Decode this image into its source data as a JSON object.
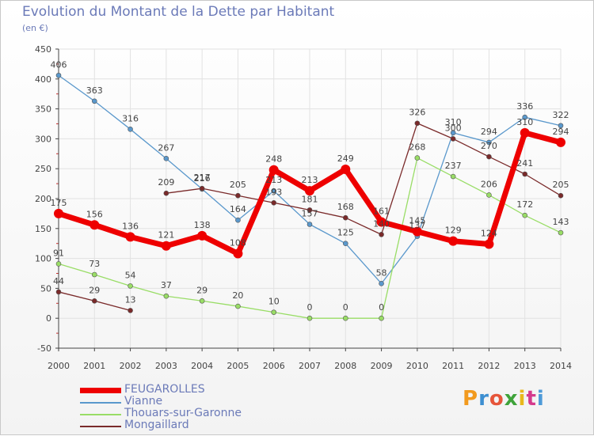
{
  "header": {
    "title": "Evolution du Montant de la Dette par Habitant",
    "subtitle": "(en €)"
  },
  "logo": {
    "text": "Proxiti",
    "letter_colors": [
      "#f29a1e",
      "#3d8fd1",
      "#e6553a",
      "#3fa33a",
      "#e8b81c",
      "#d53a8c",
      "#4e9ad8"
    ]
  },
  "colors": {
    "FEUGAROLLES": "#ee0000",
    "Vianne": "#5a98cc",
    "Thouars-sur-Garonne": "#99dd66",
    "Mongaillard": "#7a2a2a",
    "axis": "#444444",
    "grid": "#e2e2e2",
    "label_text": "#444444"
  },
  "chart_data": {
    "type": "line",
    "title": "Evolution du Montant de la Dette par Habitant",
    "subtitle": "(en €)",
    "xlabel": "",
    "ylabel": "",
    "x": [
      2000,
      2001,
      2002,
      2003,
      2004,
      2005,
      2006,
      2007,
      2008,
      2009,
      2010,
      2011,
      2012,
      2013,
      2014
    ],
    "ylim": [
      -50,
      450
    ],
    "yticks": [
      -50,
      0,
      50,
      100,
      150,
      200,
      250,
      300,
      350,
      400,
      450
    ],
    "grid": true,
    "legend_position": "bottom-left",
    "series": [
      {
        "name": "FEUGAROLLES",
        "values": [
          175,
          156,
          136,
          121,
          138,
          108,
          248,
          213,
          249,
          161,
          145,
          129,
          124,
          310,
          294
        ],
        "labels": [
          "175",
          "156",
          "136",
          "121",
          "138",
          "108",
          "248",
          "213",
          "249",
          "161",
          "145",
          "129",
          "124",
          "310",
          "294"
        ]
      },
      {
        "name": "Vianne",
        "values": [
          406,
          363,
          316,
          267,
          216,
          164,
          213,
          157,
          125,
          58,
          137,
          310,
          294,
          336,
          322
        ],
        "labels": [
          "406",
          "363",
          "316",
          "267",
          "216",
          "164",
          "213",
          "157",
          "125",
          "58",
          "137",
          "310",
          "294",
          "336",
          "322"
        ]
      },
      {
        "name": "Thouars-sur-Garonne",
        "values": [
          91,
          73,
          54,
          37,
          29,
          20,
          10,
          0,
          0,
          0,
          268,
          237,
          206,
          172,
          143
        ],
        "labels": [
          "91",
          "73",
          "54",
          "37",
          "29",
          "20",
          "10",
          "0",
          "0",
          "0",
          "268",
          "237",
          "206",
          "172",
          "143"
        ]
      },
      {
        "name": "Mongaillard",
        "segments": [
          [
            0,
            2
          ],
          [
            3,
            14
          ]
        ],
        "values": [
          44,
          29,
          13,
          209,
          217,
          205,
          193,
          181,
          168,
          140,
          326,
          300,
          270,
          241,
          205
        ],
        "labels": [
          "44",
          "29",
          "13",
          "209",
          "217",
          "205",
          "193",
          "181",
          "168",
          "140",
          "326",
          "300",
          "270",
          "241",
          "205"
        ]
      }
    ]
  }
}
